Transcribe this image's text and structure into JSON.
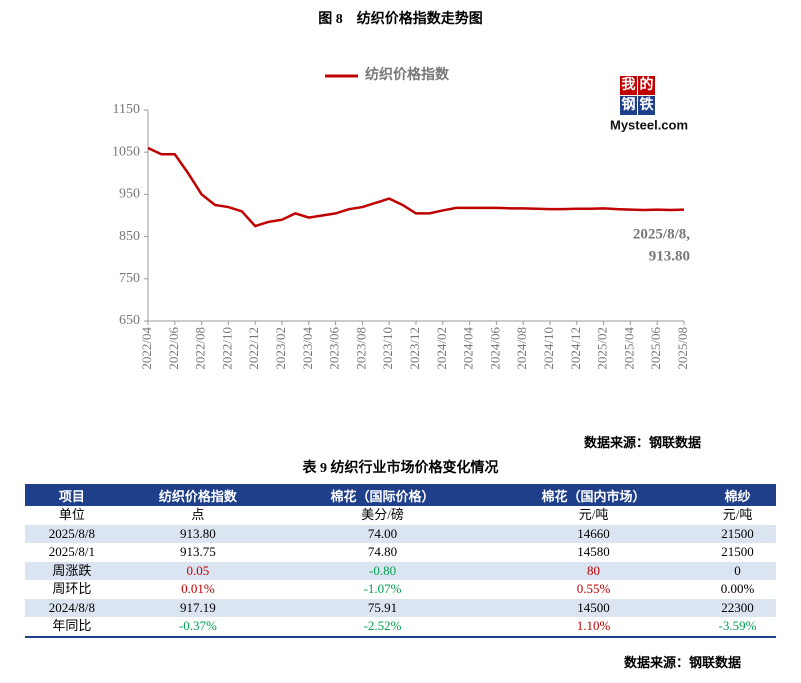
{
  "figure_title": "图 8　纺织价格指数走势图",
  "logo": {
    "chars": [
      "我",
      "的",
      "钢",
      "铁"
    ],
    "text": "Mysteel.com"
  },
  "chart_data": {
    "type": "line",
    "categories": [
      "2022/04",
      null,
      "2022/06",
      null,
      "2022/08",
      null,
      "2022/10",
      null,
      "2022/12",
      null,
      "2023/02",
      null,
      "2023/04",
      null,
      "2023/06",
      null,
      "2023/08",
      null,
      "2023/10",
      null,
      "2023/12",
      null,
      "2024/02",
      null,
      "2024/04",
      null,
      "2024/06",
      null,
      "2024/08",
      null,
      "2024/10",
      null,
      "2024/12",
      null,
      "2025/02",
      null,
      "2025/04",
      null,
      "2025/06",
      null,
      "2025/08"
    ],
    "series": [
      {
        "name": "纺织价格指数",
        "color": "#c00000",
        "values": [
          1060,
          1045,
          1045,
          1000,
          950,
          925,
          920,
          910,
          875,
          885,
          890,
          905,
          895,
          900,
          905,
          915,
          920,
          930,
          940,
          925,
          905,
          905,
          912,
          918,
          918,
          918,
          918,
          917,
          917,
          916,
          915,
          915,
          916,
          916,
          917,
          915,
          914,
          913,
          914,
          913,
          913.8
        ]
      }
    ],
    "ylim": [
      650,
      1150
    ],
    "yticks": [
      650,
      750,
      850,
      950,
      1050,
      1150
    ],
    "grid": false,
    "annotation": [
      "2025/8/8,",
      "913.80"
    ]
  },
  "source": "数据来源：钢联数据",
  "table": {
    "title": "表 9 纺织行业市场价格变化情况",
    "header": [
      "项目",
      "纺织价格指数",
      "棉花（国际价格）",
      "棉花（国内市场）",
      "棉纱"
    ],
    "rows": [
      [
        "单位",
        "点",
        "美分/磅",
        "元/吨",
        "元/吨"
      ],
      [
        "2025/8/8",
        "913.80",
        "74.00",
        "14660",
        "21500"
      ],
      [
        "2025/8/1",
        "913.75",
        "74.80",
        "14580",
        "21500"
      ],
      [
        "周涨跌",
        "0.05",
        "-0.80",
        "80",
        "0"
      ],
      [
        "周环比",
        "0.01%",
        "-1.07%",
        "0.55%",
        "0.00%"
      ],
      [
        "2024/8/8",
        "917.19",
        "75.91",
        "14500",
        "22300"
      ],
      [
        "年同比",
        "-0.37%",
        "-2.52%",
        "1.10%",
        "-3.59%"
      ]
    ]
  },
  "table_source": "数据来源：钢联数据"
}
